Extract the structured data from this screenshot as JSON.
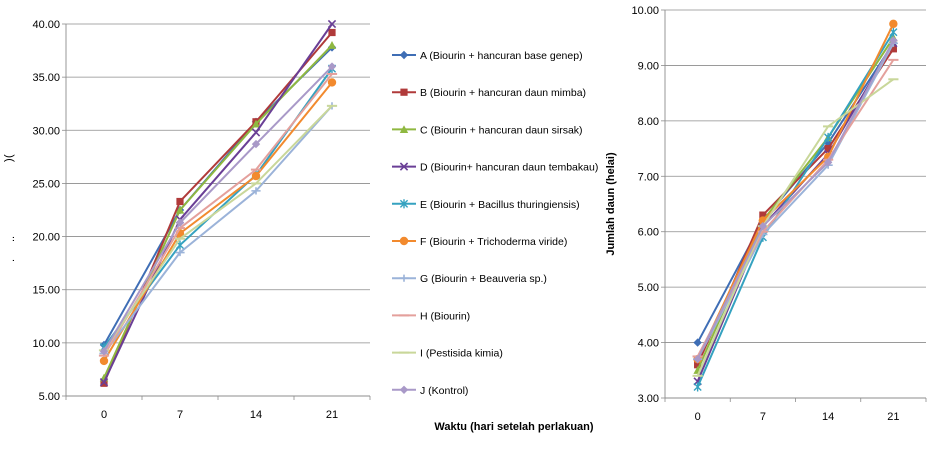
{
  "chart_data": [
    {
      "type": "line",
      "categories": [
        "0",
        "7",
        "14",
        "21"
      ],
      "ylim": [
        5,
        40
      ],
      "yticks": [
        "5.00",
        "10.00",
        "15.00",
        "20.00",
        "25.00",
        "30.00",
        "35.00",
        "40.00"
      ],
      "ylabel_fragments": [
        "(",
        ")",
        "..",
        "."
      ],
      "grid": "horizontal",
      "series": [
        {
          "name": "A (Biourin + hancuran base genep)",
          "color": "#3f6eb5",
          "marker": "diamond",
          "values": [
            9.8,
            22.5,
            30.8,
            37.8
          ]
        },
        {
          "name": "B (Biourin + hancuran daun mimba)",
          "color": "#b03a3a",
          "marker": "square",
          "values": [
            6.2,
            23.3,
            30.8,
            39.2
          ]
        },
        {
          "name": "C (Biourin + hancuran daun  sirsak)",
          "color": "#8fb840",
          "marker": "triangle",
          "values": [
            6.7,
            22.5,
            30.6,
            38.0
          ]
        },
        {
          "name": "D (Biourin+ hancuran daun tembakau)",
          "color": "#6a3f96",
          "marker": "x",
          "values": [
            6.3,
            21.6,
            29.8,
            40.0
          ]
        },
        {
          "name": "E (Biourin + Bacillus thuringiensis)",
          "color": "#35a2c0",
          "marker": "star",
          "values": [
            9.6,
            19.2,
            25.8,
            35.8
          ]
        },
        {
          "name": "F (Biourin + Trichoderma viride)",
          "color": "#f28a2e",
          "marker": "circle",
          "values": [
            8.3,
            20.3,
            25.7,
            34.5
          ]
        },
        {
          "name": "G (Biourin + Beauveria sp.)",
          "color": "#9bb3d9",
          "marker": "plus",
          "values": [
            9.0,
            18.5,
            24.3,
            32.3
          ]
        },
        {
          "name": "H (Biourin)",
          "color": "#e4a09c",
          "marker": "dash",
          "values": [
            8.8,
            20.8,
            26.3,
            35.3
          ]
        },
        {
          "name": "I (Pestisida kimia)",
          "color": "#c9d79a",
          "marker": "dash",
          "values": [
            9.3,
            19.8,
            25.0,
            32.3
          ]
        },
        {
          "name": "J (Kontrol)",
          "color": "#a999c8",
          "marker": "diamond",
          "values": [
            9.2,
            21.3,
            28.7,
            36.0
          ]
        }
      ]
    },
    {
      "type": "line",
      "categories": [
        "0",
        "7",
        "14",
        "21"
      ],
      "ylim": [
        3,
        10
      ],
      "yticks": [
        "3.00",
        "4.00",
        "5.00",
        "6.00",
        "7.00",
        "8.00",
        "9.00",
        "10.00"
      ],
      "ylabel": "Jumlah daun (helai)",
      "grid": "horizontal",
      "series": [
        {
          "color": "#3f6eb5",
          "marker": "diamond",
          "values": [
            4.0,
            6.2,
            7.6,
            9.4
          ]
        },
        {
          "color": "#b03a3a",
          "marker": "square",
          "values": [
            3.6,
            6.3,
            7.5,
            9.3
          ]
        },
        {
          "color": "#8fb840",
          "marker": "triangle",
          "values": [
            3.5,
            6.2,
            7.7,
            9.5
          ]
        },
        {
          "color": "#6a3f96",
          "marker": "x",
          "values": [
            3.3,
            6.1,
            7.4,
            9.4
          ]
        },
        {
          "color": "#35a2c0",
          "marker": "star",
          "values": [
            3.2,
            5.9,
            7.7,
            9.6
          ]
        },
        {
          "color": "#f28a2e",
          "marker": "circle",
          "values": [
            3.7,
            6.2,
            7.35,
            9.75
          ]
        },
        {
          "color": "#9bb3d9",
          "marker": "plus",
          "values": [
            3.7,
            5.95,
            7.2,
            9.4
          ]
        },
        {
          "color": "#e4a09c",
          "marker": "dash",
          "values": [
            3.75,
            6.0,
            7.3,
            9.1
          ]
        },
        {
          "color": "#c9d79a",
          "marker": "dash",
          "values": [
            3.4,
            6.1,
            7.9,
            8.75
          ]
        },
        {
          "color": "#a999c8",
          "marker": "diamond",
          "values": [
            3.7,
            6.1,
            7.25,
            9.45
          ]
        }
      ]
    }
  ],
  "xlabel": "Waktu (hari setelah perlakuan)"
}
